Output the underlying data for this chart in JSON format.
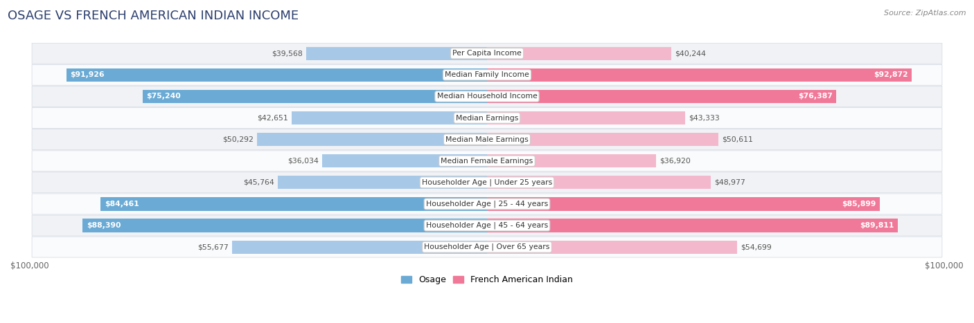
{
  "title": "OSAGE VS FRENCH AMERICAN INDIAN INCOME",
  "source": "Source: ZipAtlas.com",
  "categories": [
    "Per Capita Income",
    "Median Family Income",
    "Median Household Income",
    "Median Earnings",
    "Median Male Earnings",
    "Median Female Earnings",
    "Householder Age | Under 25 years",
    "Householder Age | 25 - 44 years",
    "Householder Age | 45 - 64 years",
    "Householder Age | Over 65 years"
  ],
  "osage_values": [
    39568,
    91926,
    75240,
    42651,
    50292,
    36034,
    45764,
    84461,
    88390,
    55677
  ],
  "french_values": [
    40244,
    92872,
    76387,
    43333,
    50611,
    36920,
    48977,
    85899,
    89811,
    54699
  ],
  "osage_labels": [
    "$39,568",
    "$91,926",
    "$75,240",
    "$42,651",
    "$50,292",
    "$36,034",
    "$45,764",
    "$84,461",
    "$88,390",
    "$55,677"
  ],
  "french_labels": [
    "$40,244",
    "$92,872",
    "$76,387",
    "$43,333",
    "$50,611",
    "$36,920",
    "$48,977",
    "$85,899",
    "$89,811",
    "$54,699"
  ],
  "max_value": 100000,
  "osage_color_light": "#a8c8e8",
  "osage_color_dark": "#6aaad4",
  "french_color_light": "#f4b8cc",
  "french_color_dark": "#f07898",
  "row_bg_odd": "#f0f2f5",
  "row_bg_even": "#fafbfc",
  "row_border": "#d8dce4",
  "label_white": "#ffffff",
  "label_dark": "#555555",
  "legend_osage": "Osage",
  "legend_french": "French American Indian",
  "threshold_pct": 0.58
}
